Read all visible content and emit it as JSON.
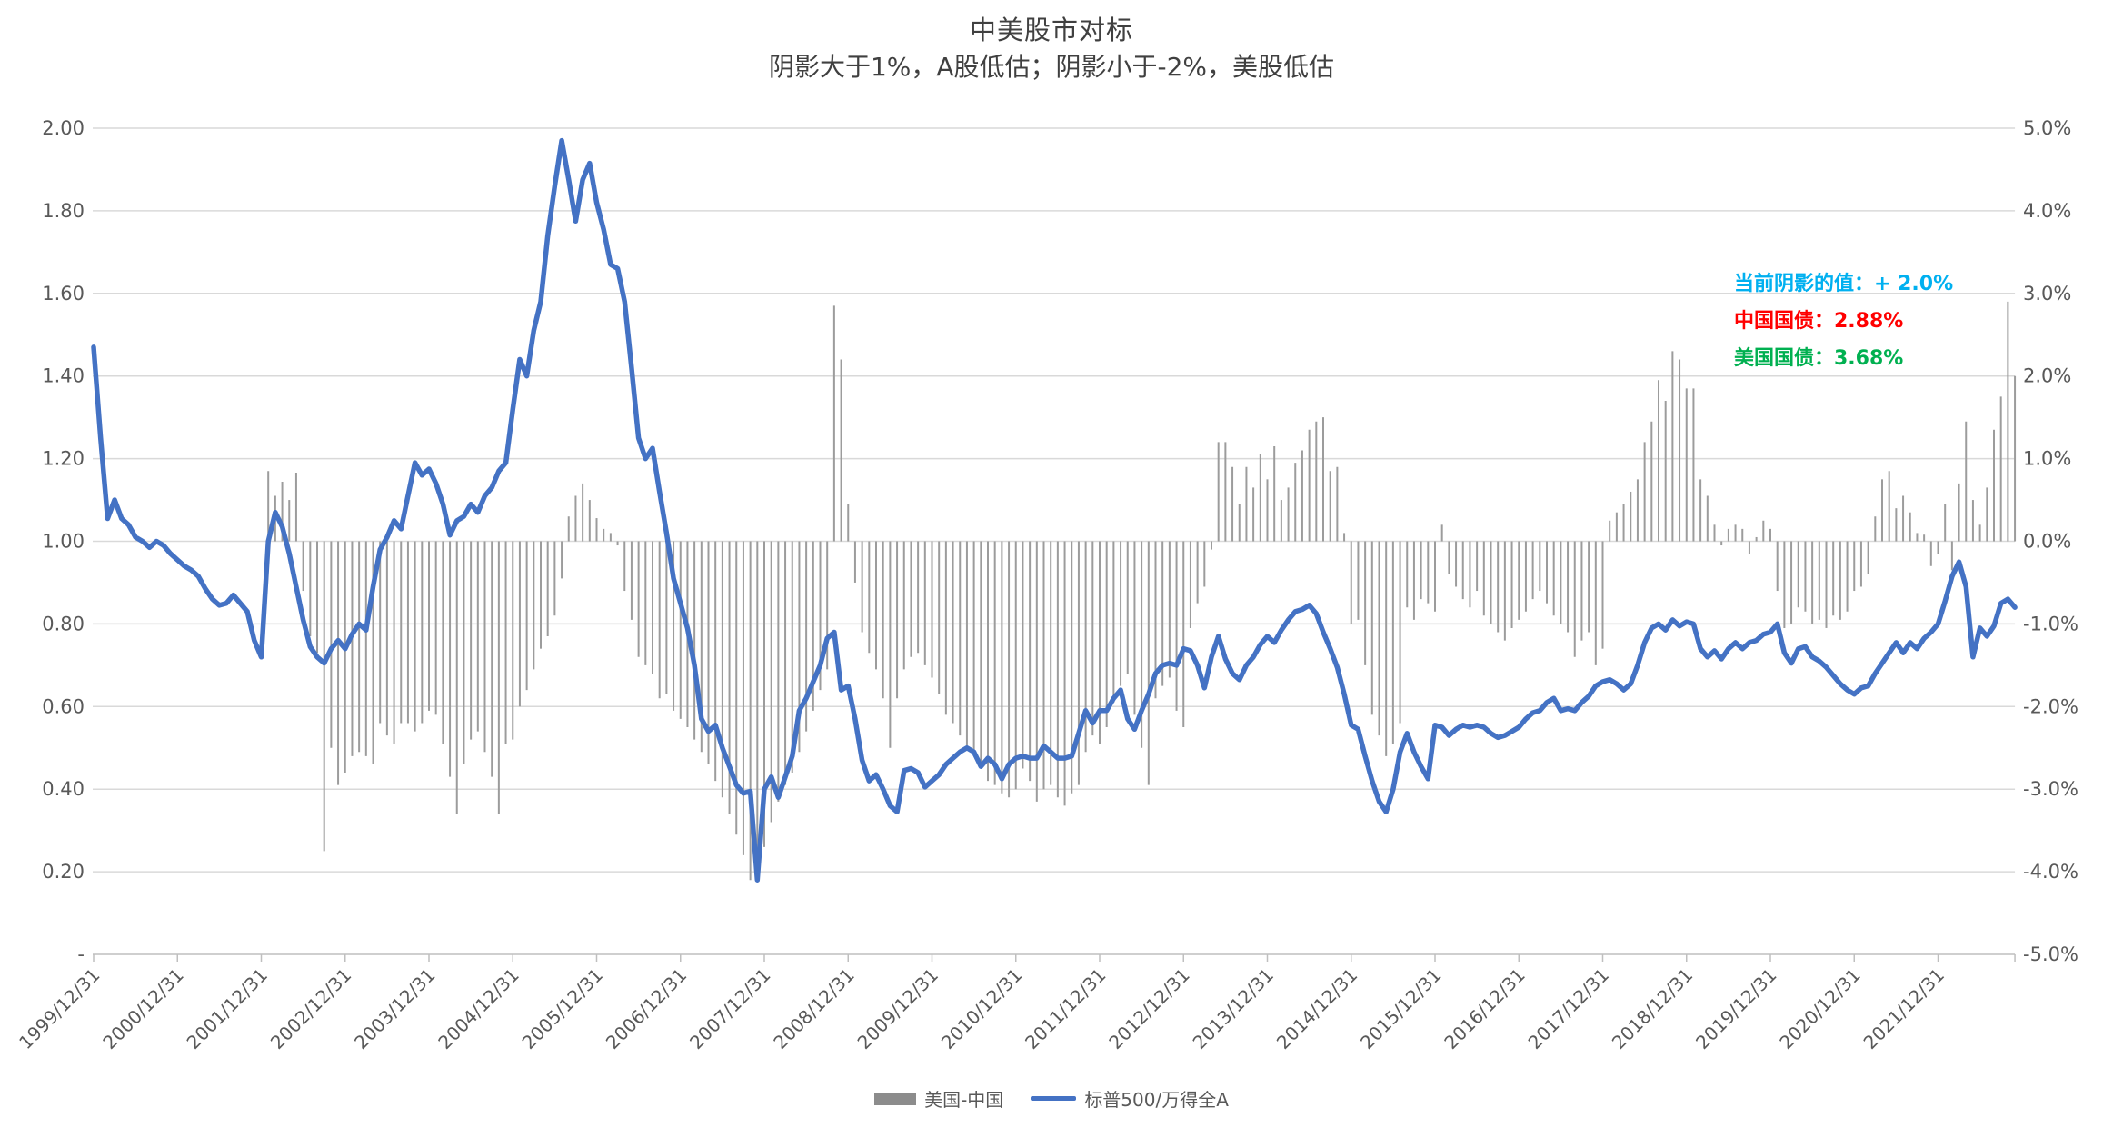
{
  "title": {
    "line1": "中美股市对标",
    "line2": "阴影大于1%，A股低估；阴影小于-2%，美股低估"
  },
  "annotations": [
    {
      "id": "current-shadow",
      "text": "当前阴影的值：+ 2.0%",
      "color": "#00B0F0"
    },
    {
      "id": "china-bond",
      "text": "中国国债：2.88%",
      "color": "#FF0000"
    },
    {
      "id": "us-bond",
      "text": "美国国债：3.68%",
      "color": "#00B050"
    }
  ],
  "legend": {
    "bar_label": "美国-中国",
    "line_label": "标普500/万得全A"
  },
  "chart_data": {
    "type": "combo",
    "x_start": "1999/12",
    "x_end": "2022/11",
    "x_tick_labels": [
      "1999/12/31",
      "2000/12/31",
      "2001/12/31",
      "2002/12/31",
      "2003/12/31",
      "2004/12/31",
      "2005/12/31",
      "2006/12/31",
      "2007/12/31",
      "2008/12/31",
      "2009/12/31",
      "2010/12/31",
      "2011/12/31",
      "2012/12/31",
      "2013/12/31",
      "2014/12/31",
      "2015/12/31",
      "2016/12/31",
      "2017/12/31",
      "2018/12/31",
      "2019/12/31",
      "2020/12/31",
      "2021/12/31"
    ],
    "left_axis": {
      "min": 0.0,
      "max": 2.0,
      "step": 0.2,
      "labels": [
        "2.00",
        "1.80",
        "1.60",
        "1.40",
        "1.20",
        "1.00",
        "0.80",
        "0.60",
        "0.40",
        "0.20",
        "-"
      ]
    },
    "right_axis": {
      "min": -5.0,
      "max": 5.0,
      "step": 1.0,
      "unit": "%",
      "labels": [
        "5.0%",
        "4.0%",
        "3.0%",
        "2.0%",
        "1.0%",
        "0.0%",
        "-1.0%",
        "-2.0%",
        "-3.0%",
        "-4.0%",
        "-5.0%"
      ]
    },
    "grid": true,
    "legend_position": "bottom",
    "series": [
      {
        "name": "美国-中国",
        "type": "bar",
        "axis": "right",
        "unit": "%",
        "color": "#9C9C9C",
        "start_month": "2002/01",
        "values": [
          0.85,
          0.55,
          0.72,
          0.5,
          0.83,
          -0.6,
          -1.15,
          -1.35,
          -3.75,
          -2.5,
          -2.95,
          -2.8,
          -2.6,
          -2.55,
          -2.6,
          -2.7,
          -2.2,
          -2.35,
          -2.45,
          -2.2,
          -2.2,
          -2.3,
          -2.2,
          -2.05,
          -2.1,
          -2.45,
          -2.85,
          -3.3,
          -2.7,
          -2.4,
          -2.3,
          -2.55,
          -2.85,
          -3.3,
          -2.45,
          -2.4,
          -2.0,
          -1.8,
          -1.55,
          -1.3,
          -1.15,
          -0.9,
          -0.45,
          0.3,
          0.55,
          0.7,
          0.5,
          0.28,
          0.15,
          0.1,
          -0.05,
          -0.6,
          -0.95,
          -1.4,
          -1.5,
          -1.6,
          -1.9,
          -1.85,
          -2.05,
          -2.15,
          -2.25,
          -2.4,
          -2.55,
          -2.7,
          -2.9,
          -3.1,
          -3.3,
          -3.55,
          -3.8,
          -4.1,
          -3.95,
          -3.7,
          -3.4,
          -3.15,
          -2.95,
          -2.8,
          -2.55,
          -2.3,
          -2.05,
          -1.8,
          -1.55,
          2.85,
          2.2,
          0.45,
          -0.5,
          -1.1,
          -1.35,
          -1.55,
          -1.9,
          -2.5,
          -1.9,
          -1.55,
          -1.4,
          -1.35,
          -1.5,
          -1.65,
          -1.85,
          -2.1,
          -2.2,
          -2.35,
          -2.5,
          -2.6,
          -2.75,
          -2.9,
          -2.95,
          -3.05,
          -3.1,
          -3.0,
          -2.75,
          -2.9,
          -3.15,
          -3.0,
          -2.95,
          -3.1,
          -3.2,
          -3.05,
          -2.95,
          -2.55,
          -2.35,
          -2.45,
          -2.25,
          -1.95,
          -1.75,
          -1.6,
          -2.1,
          -2.5,
          -2.95,
          -1.9,
          -1.75,
          -1.65,
          -2.05,
          -2.25,
          -1.05,
          -0.75,
          -0.55,
          -0.1,
          1.2,
          1.2,
          0.9,
          0.45,
          0.9,
          0.65,
          1.05,
          0.75,
          1.15,
          0.5,
          0.65,
          0.95,
          1.1,
          1.35,
          1.45,
          1.5,
          0.85,
          0.9,
          0.1,
          -1.0,
          -0.95,
          -1.5,
          -2.1,
          -2.35,
          -2.6,
          -2.45,
          -2.2,
          -0.8,
          -0.95,
          -0.7,
          -0.75,
          -0.85,
          0.2,
          -0.4,
          -0.55,
          -0.7,
          -0.8,
          -0.6,
          -0.9,
          -1.0,
          -1.1,
          -1.2,
          -1.05,
          -0.95,
          -0.85,
          -0.7,
          -0.6,
          -0.75,
          -0.9,
          -1.0,
          -1.1,
          -1.4,
          -1.2,
          -1.1,
          -1.5,
          -1.3,
          0.25,
          0.35,
          0.45,
          0.6,
          0.75,
          1.2,
          1.45,
          1.95,
          1.7,
          2.3,
          2.2,
          1.85,
          1.85,
          0.75,
          0.55,
          0.2,
          -0.05,
          0.15,
          0.2,
          0.15,
          -0.15,
          0.05,
          0.25,
          0.15,
          -0.6,
          -1.05,
          -1.0,
          -0.8,
          -0.85,
          -1.0,
          -0.95,
          -1.05,
          -0.9,
          -0.95,
          -0.85,
          -0.6,
          -0.55,
          -0.4,
          0.3,
          0.75,
          0.85,
          0.4,
          0.55,
          0.35,
          0.1,
          0.08,
          -0.3,
          -0.15,
          0.45,
          -0.35,
          0.7,
          1.45,
          0.5,
          0.2,
          0.65,
          1.35,
          1.75,
          2.9,
          2.0
        ]
      },
      {
        "name": "标普500/万得全A",
        "type": "line",
        "axis": "left",
        "color": "#4472C4",
        "start_month": "1999/12",
        "values": [
          1.47,
          1.25,
          1.055,
          1.1,
          1.055,
          1.04,
          1.01,
          1.0,
          0.985,
          1.0,
          0.99,
          0.97,
          0.955,
          0.94,
          0.93,
          0.915,
          0.885,
          0.86,
          0.845,
          0.85,
          0.87,
          0.85,
          0.83,
          0.76,
          0.72,
          1.0,
          1.07,
          1.035,
          0.97,
          0.89,
          0.81,
          0.745,
          0.72,
          0.705,
          0.74,
          0.76,
          0.74,
          0.775,
          0.8,
          0.785,
          0.89,
          0.98,
          1.01,
          1.05,
          1.03,
          1.11,
          1.19,
          1.16,
          1.175,
          1.14,
          1.09,
          1.015,
          1.05,
          1.06,
          1.09,
          1.07,
          1.11,
          1.13,
          1.17,
          1.19,
          1.32,
          1.44,
          1.4,
          1.51,
          1.58,
          1.74,
          1.86,
          1.97,
          1.875,
          1.775,
          1.875,
          1.915,
          1.82,
          1.755,
          1.67,
          1.66,
          1.58,
          1.42,
          1.25,
          1.2,
          1.225,
          1.12,
          1.02,
          0.91,
          0.85,
          0.79,
          0.7,
          0.57,
          0.54,
          0.555,
          0.5,
          0.455,
          0.41,
          0.39,
          0.395,
          0.18,
          0.4,
          0.43,
          0.38,
          0.43,
          0.48,
          0.59,
          0.62,
          0.66,
          0.7,
          0.765,
          0.78,
          0.64,
          0.65,
          0.57,
          0.47,
          0.42,
          0.435,
          0.4,
          0.36,
          0.345,
          0.445,
          0.45,
          0.44,
          0.405,
          0.42,
          0.435,
          0.46,
          0.475,
          0.49,
          0.5,
          0.49,
          0.455,
          0.475,
          0.46,
          0.425,
          0.46,
          0.475,
          0.48,
          0.475,
          0.475,
          0.505,
          0.49,
          0.475,
          0.475,
          0.48,
          0.535,
          0.59,
          0.56,
          0.59,
          0.59,
          0.62,
          0.64,
          0.57,
          0.545,
          0.59,
          0.63,
          0.68,
          0.7,
          0.705,
          0.7,
          0.74,
          0.735,
          0.7,
          0.645,
          0.72,
          0.77,
          0.715,
          0.68,
          0.665,
          0.7,
          0.72,
          0.75,
          0.77,
          0.755,
          0.785,
          0.81,
          0.83,
          0.835,
          0.845,
          0.825,
          0.78,
          0.74,
          0.695,
          0.63,
          0.555,
          0.545,
          0.48,
          0.42,
          0.37,
          0.345,
          0.4,
          0.49,
          0.535,
          0.49,
          0.455,
          0.425,
          0.555,
          0.55,
          0.53,
          0.545,
          0.555,
          0.55,
          0.555,
          0.55,
          0.535,
          0.525,
          0.53,
          0.54,
          0.55,
          0.57,
          0.585,
          0.59,
          0.61,
          0.62,
          0.59,
          0.595,
          0.59,
          0.61,
          0.625,
          0.65,
          0.66,
          0.665,
          0.655,
          0.64,
          0.655,
          0.7,
          0.755,
          0.79,
          0.8,
          0.785,
          0.81,
          0.795,
          0.805,
          0.8,
          0.74,
          0.72,
          0.735,
          0.715,
          0.74,
          0.755,
          0.74,
          0.755,
          0.76,
          0.775,
          0.78,
          0.8,
          0.73,
          0.705,
          0.74,
          0.745,
          0.72,
          0.71,
          0.695,
          0.675,
          0.655,
          0.64,
          0.63,
          0.645,
          0.65,
          0.68,
          0.705,
          0.73,
          0.755,
          0.73,
          0.755,
          0.74,
          0.765,
          0.78,
          0.8,
          0.855,
          0.915,
          0.95,
          0.89,
          0.72,
          0.79,
          0.77,
          0.795,
          0.85,
          0.86,
          0.84
        ]
      }
    ],
    "colors": {
      "grid": "#D9D9D9",
      "axis": "#BFBFBF",
      "tick_text": "#595959",
      "line": "#4472C4",
      "bar": "#9C9C9C",
      "legend_bar_swatch": "#8C8C8C"
    }
  }
}
